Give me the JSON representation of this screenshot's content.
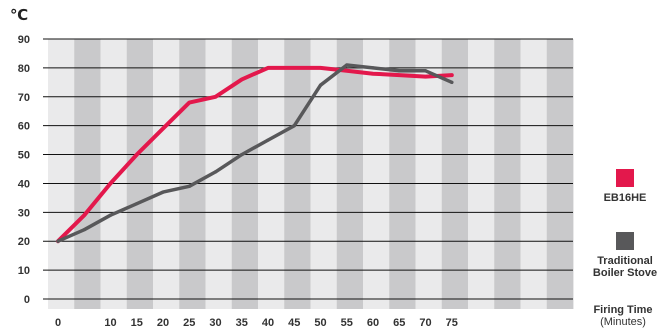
{
  "chart_data": {
    "type": "line",
    "y_unit": "℃",
    "xlabel": "Firing Time",
    "xlabel_sub": "(Minutes)",
    "x": [
      0,
      5,
      10,
      15,
      20,
      25,
      30,
      35,
      40,
      45,
      50,
      55,
      60,
      65,
      70,
      75
    ],
    "xticks": [
      "0",
      "10",
      "15",
      "20",
      "25",
      "30",
      "35",
      "40",
      "45",
      "50",
      "55",
      "60",
      "65",
      "70",
      "75"
    ],
    "yticks": [
      "0",
      "10",
      "20",
      "30",
      "40",
      "50",
      "60",
      "70",
      "80",
      "90"
    ],
    "ylim": [
      0,
      90
    ],
    "grid": true,
    "legend_position": "right",
    "series": [
      {
        "name": "EB16HE",
        "color": "#E3184C",
        "values": [
          20,
          29,
          40,
          50,
          59,
          68,
          70,
          76,
          80,
          80,
          80,
          79,
          78,
          77.5,
          77,
          77.5
        ]
      },
      {
        "name": "Traditional Boiler Stove",
        "color": "#58585A",
        "values": [
          20,
          24,
          29,
          33,
          37,
          39,
          44,
          50,
          55,
          60,
          74,
          81,
          80,
          79,
          79,
          75
        ]
      }
    ]
  }
}
